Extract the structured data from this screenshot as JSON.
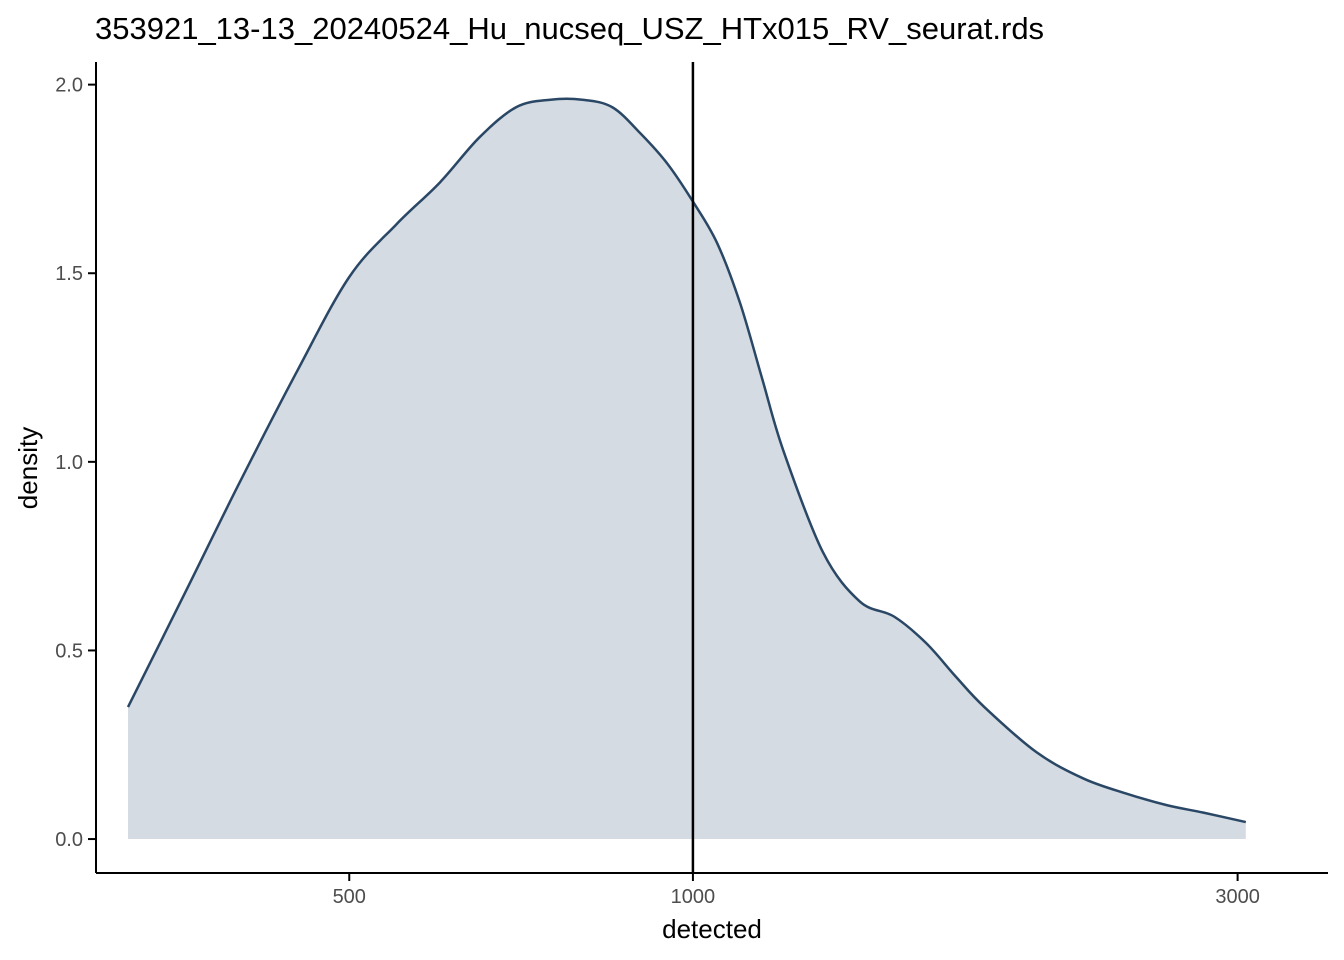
{
  "chart_data": {
    "type": "area",
    "title": "353921_13-13_20240524_Hu_nucseq_USZ_HTx015_RV_seurat.rds",
    "xlabel": "detected",
    "ylabel": "density",
    "x_scale": "log10",
    "xlim": [
      300,
      3600
    ],
    "ylim": [
      -0.09,
      2.06
    ],
    "x_ticks": [
      500,
      1000,
      3000
    ],
    "x_tick_labels": [
      "500",
      "1000",
      "3000"
    ],
    "y_ticks": [
      0.0,
      0.5,
      1.0,
      1.5,
      2.0
    ],
    "y_tick_labels": [
      "0.0",
      "0.5",
      "1.0",
      "1.5",
      "2.0"
    ],
    "vline": 1000,
    "grid": false,
    "series": [
      {
        "x": [
          320,
          360,
          400,
          450,
          500,
          550,
          600,
          650,
          700,
          750,
          800,
          850,
          900,
          950,
          1000,
          1050,
          1100,
          1150,
          1200,
          1300,
          1400,
          1500,
          1600,
          1700,
          1800,
          2000,
          2200,
          2400,
          2600,
          2800,
          3050
        ],
        "y": [
          0.35,
          0.66,
          0.94,
          1.24,
          1.49,
          1.63,
          1.74,
          1.86,
          1.94,
          1.96,
          1.96,
          1.94,
          1.87,
          1.79,
          1.69,
          1.58,
          1.42,
          1.22,
          1.03,
          0.76,
          0.63,
          0.59,
          0.52,
          0.43,
          0.35,
          0.23,
          0.16,
          0.12,
          0.09,
          0.07,
          0.045
        ]
      }
    ],
    "colors": {
      "line": "#2a4766",
      "fill": "#d4dbe2",
      "vline": "#000000",
      "axis": "#000000",
      "tick_label": "#4d4d4d"
    }
  }
}
